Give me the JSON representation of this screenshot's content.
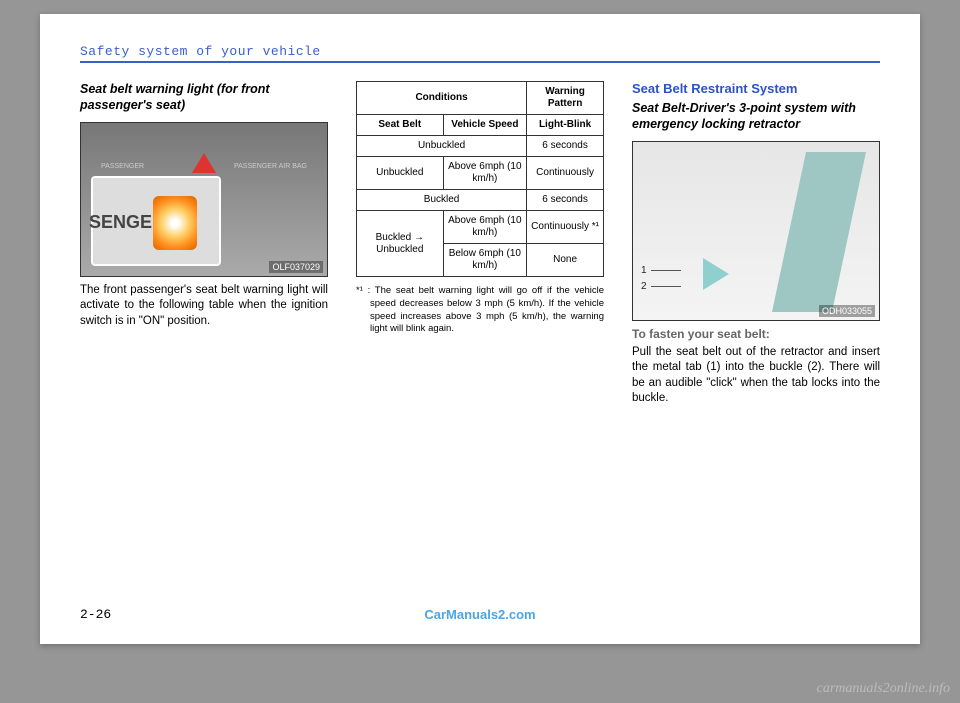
{
  "header": {
    "title": "Safety system of your vehicle"
  },
  "col1": {
    "heading": "Seat belt warning light (for front passenger's seat)",
    "imgref": "OLF037029",
    "body": "The front passenger's seat belt warning light will activate to the following table when the ignition switch is in \"ON\" position."
  },
  "col2": {
    "table": {
      "head": {
        "conditions": "Conditions",
        "warning_pattern": "Warning Pattern",
        "seat_belt": "Seat Belt",
        "vehicle_speed": "Vehicle Speed",
        "light_blink": "Light-Blink"
      },
      "rows": [
        {
          "belt": "Unbuckled",
          "speed": "",
          "pattern": "6 seconds"
        },
        {
          "belt": "Unbuckled",
          "speed": "Above 6mph (10 km/h)",
          "pattern": "Continuously"
        },
        {
          "belt": "Buckled",
          "speed": "",
          "pattern": "6 seconds"
        },
        {
          "belt": "Buckled → Unbuckled",
          "speed": "Above 6mph (10 km/h)",
          "pattern": "Continuously *¹"
        },
        {
          "belt": "",
          "speed": "Below 6mph (10 km/h)",
          "pattern": "None"
        }
      ]
    },
    "footnote_label": "*¹ :",
    "footnote": "The seat belt warning light will go off if the vehicle speed decreases below 3 mph (5 km/h). If the vehicle speed increases above 3 mph (5 km/h), the warning light will blink again."
  },
  "col3": {
    "blueheading": "Seat Belt Restraint System",
    "subheading": "Seat Belt-Driver's 3-point system with emergency locking retractor",
    "imgref": "ODH033055",
    "label1": "1",
    "label2": "2",
    "gray": "To fasten your seat belt:",
    "body": "Pull the seat belt out of the retractor and insert the metal tab (1) into the buckle (2). There will be an audible \"click\" when the tab locks into the buckle."
  },
  "footer": {
    "pagenum": "2-26",
    "centerlink": "CarManuals2.com",
    "watermark": "carmanuals2online.info"
  }
}
